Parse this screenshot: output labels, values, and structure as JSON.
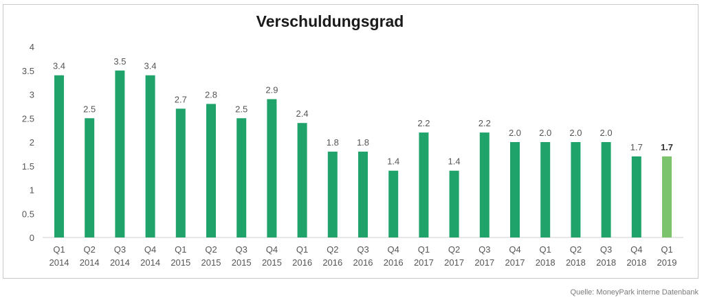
{
  "colors": {
    "bar": "#1fa36b",
    "highlight": "#7cc36d",
    "axis": "#cfcfcf",
    "text": "#555555"
  },
  "source": "Quelle: MoneyPark interne Datenbank",
  "chart_data": {
    "type": "bar",
    "title": "Verschuldungsgrad",
    "xlabel": "",
    "ylabel": "",
    "ylim": [
      0,
      4
    ],
    "yticks": [
      "0",
      "0.5",
      "1",
      "1.5",
      "2",
      "2.5",
      "3",
      "3.5",
      "4"
    ],
    "grid": false,
    "categories": [
      [
        "Q1",
        "2014"
      ],
      [
        "Q2",
        "2014"
      ],
      [
        "Q3",
        "2014"
      ],
      [
        "Q4",
        "2014"
      ],
      [
        "Q1",
        "2015"
      ],
      [
        "Q2",
        "2015"
      ],
      [
        "Q3",
        "2015"
      ],
      [
        "Q4",
        "2015"
      ],
      [
        "Q1",
        "2016"
      ],
      [
        "Q2",
        "2016"
      ],
      [
        "Q3",
        "2016"
      ],
      [
        "Q4",
        "2016"
      ],
      [
        "Q1",
        "2017"
      ],
      [
        "Q2",
        "2017"
      ],
      [
        "Q3",
        "2017"
      ],
      [
        "Q4",
        "2017"
      ],
      [
        "Q1",
        "2018"
      ],
      [
        "Q2",
        "2018"
      ],
      [
        "Q3",
        "2018"
      ],
      [
        "Q4",
        "2018"
      ],
      [
        "Q1",
        "2019"
      ]
    ],
    "values": [
      3.4,
      2.5,
      3.5,
      3.4,
      2.7,
      2.8,
      2.5,
      2.9,
      2.4,
      1.8,
      1.8,
      1.4,
      2.2,
      1.4,
      2.2,
      2.0,
      2.0,
      2.0,
      2.0,
      1.7,
      1.7
    ],
    "labels": [
      "3.4",
      "2.5",
      "3.5",
      "3.4",
      "2.7",
      "2.8",
      "2.5",
      "2.9",
      "2.4",
      "1.8",
      "1.8",
      "1.4",
      "2.2",
      "1.4",
      "2.2",
      "2.0",
      "2.0",
      "2.0",
      "2.0",
      "1.7",
      "1.7"
    ],
    "highlight_index": 20
  }
}
